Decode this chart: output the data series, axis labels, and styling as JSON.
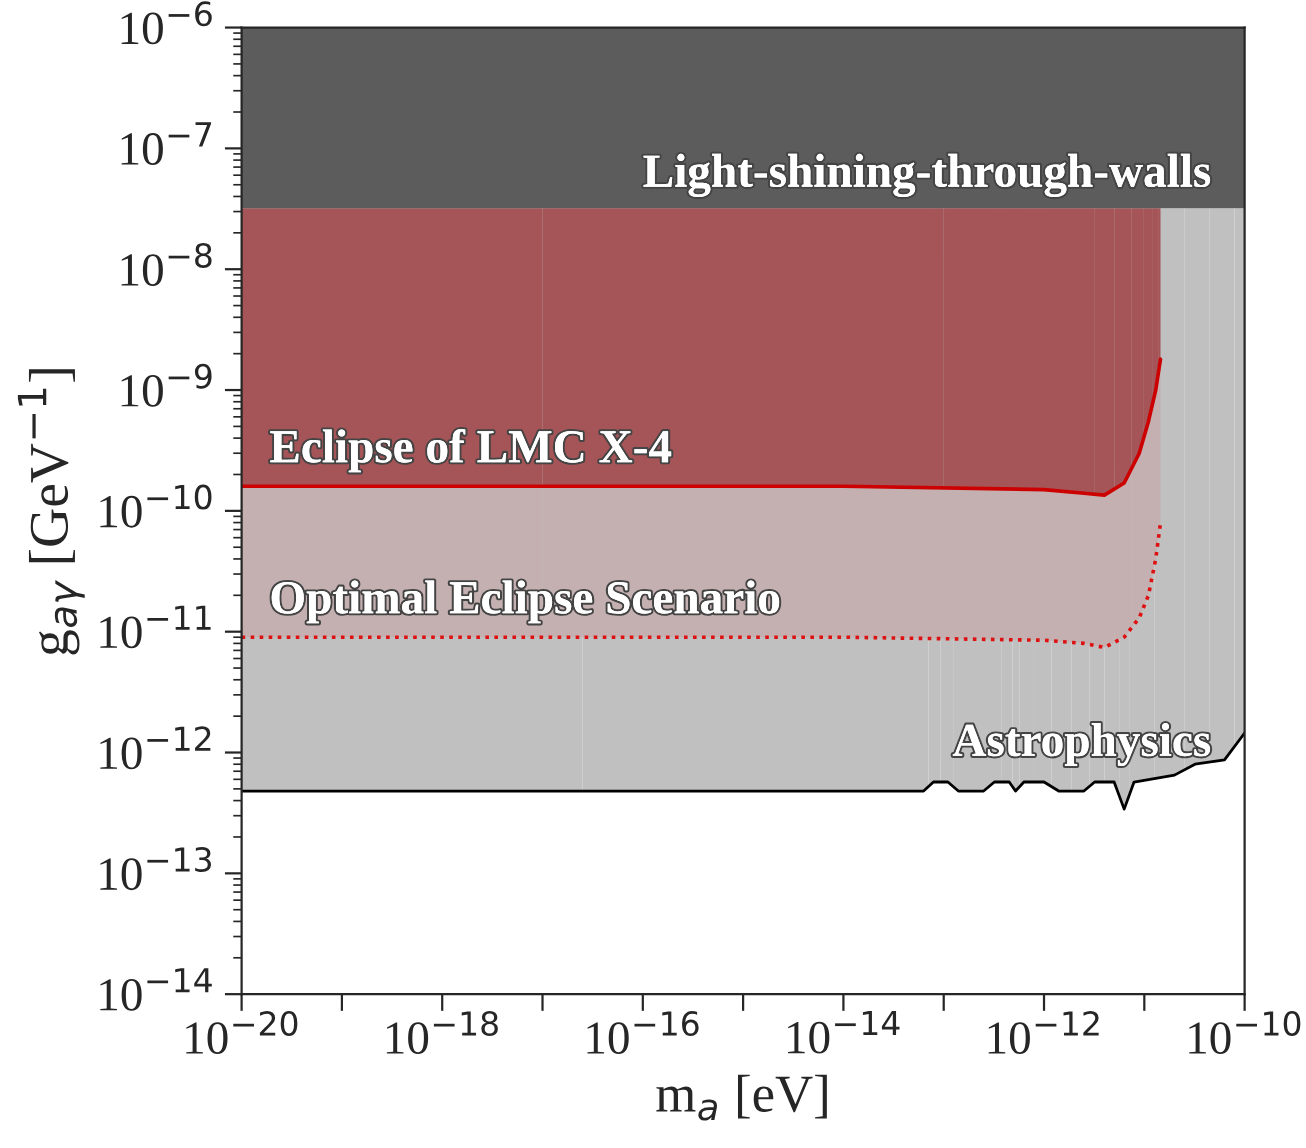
{
  "chart_data": {
    "type": "line",
    "xlabel": "m$_{a}$ [eV]",
    "ylabel": "g$_{aγ}$ [GeV$^{−1}$]",
    "log": "xy",
    "xlim": [
      1e-20,
      1e-10
    ],
    "ylim": [
      1e-14,
      1e-06
    ],
    "xticks": [
      {
        "value": 1e-20,
        "label": "10$^{−20}$"
      },
      {
        "value": 1e-19,
        "label": null
      },
      {
        "value": 1e-18,
        "label": "10$^{−18}$"
      },
      {
        "value": 1e-17,
        "label": null
      },
      {
        "value": 1e-16,
        "label": "10$^{−16}$"
      },
      {
        "value": 1e-15,
        "label": null
      },
      {
        "value": 1e-14,
        "label": "10$^{−14}$"
      },
      {
        "value": 1e-13,
        "label": null
      },
      {
        "value": 1e-12,
        "label": "10$^{−12}$"
      },
      {
        "value": 1e-11,
        "label": null
      },
      {
        "value": 1e-10,
        "label": "10$^{−10}$"
      }
    ],
    "yticks": [
      {
        "value": 1e-14,
        "label": "10$^{−14}$"
      },
      {
        "value": 1e-13,
        "label": "10$^{−13}$"
      },
      {
        "value": 1e-12,
        "label": "10$^{−12}$"
      },
      {
        "value": 1e-11,
        "label": "10$^{−11}$"
      },
      {
        "value": 1e-10,
        "label": "10$^{−10}$"
      },
      {
        "value": 1e-09,
        "label": "10$^{−9}$"
      },
      {
        "value": 1e-08,
        "label": "10$^{−8}$"
      },
      {
        "value": 1e-07,
        "label": "10$^{−7}$"
      },
      {
        "value": 1e-06,
        "label": "10$^{−6}$"
      }
    ],
    "grid": false,
    "legend": false,
    "marker": "none",
    "bands": [
      {
        "axis": "y",
        "from": 3.2e-08,
        "to": 1e-06,
        "label": "Light-shining-through-walls",
        "color": "#5c5c5c"
      }
    ],
    "series": [
      {
        "name": "Astrophysics",
        "color": "#000000",
        "colors": [
          "#c0c0c0",
          "#c0c0c0",
          "#c0c0c0",
          "#c0c0c0",
          "#c0c0c0",
          "#c0c0c0",
          "#c0c0c0",
          "#c0c0c0",
          "#c0c0c0",
          "#c0c0c0",
          "#c0c0c0",
          "#c0c0c0",
          "#c0c0c0",
          "#c0c0c0",
          "#c0c0c0",
          "#c0c0c0",
          "#c0c0c0",
          "#c0c0c0",
          "#c0c0c0",
          "#c0c0c0",
          "#c0c0c0"
        ],
        "line_style": "solid",
        "x": [
          1e-20,
          6.3e-14,
          7.9e-14,
          1.1e-13,
          1.4e-13,
          2.5e-13,
          3.2e-13,
          4.5e-13,
          5.2e-13,
          6.3e-13,
          1e-12,
          1.4e-12,
          2.5e-12,
          3.2e-12,
          5e-12,
          6.3e-12,
          7.9e-12,
          2e-11,
          3.2e-11,
          6.3e-11,
          1e-10
        ],
        "values": [
          4.8e-13,
          4.8e-13,
          5.7e-13,
          5.7e-13,
          4.8e-13,
          4.8e-13,
          5.7e-13,
          5.7e-13,
          4.8e-13,
          5.7e-13,
          5.7e-13,
          4.8e-13,
          4.8e-13,
          5.7e-13,
          5.7e-13,
          3.4e-13,
          5.7e-13,
          6.5e-13,
          8e-13,
          8.7e-13,
          1.45e-12
        ],
        "lower": [
          4.8e-13,
          4.8e-13,
          5.7e-13,
          5.7e-13,
          4.8e-13,
          4.8e-13,
          5.7e-13,
          5.7e-13,
          4.8e-13,
          5.7e-13,
          5.7e-13,
          4.8e-13,
          4.8e-13,
          5.7e-13,
          5.7e-13,
          3.4e-13,
          5.7e-13,
          6.5e-13,
          8e-13,
          8.7e-13,
          1.45e-12
        ],
        "upper": [
          3.2e-08,
          3.2e-08,
          3.2e-08,
          3.2e-08,
          3.2e-08,
          3.2e-08,
          3.2e-08,
          3.2e-08,
          3.2e-08,
          3.2e-08,
          3.2e-08,
          3.2e-08,
          3.2e-08,
          3.2e-08,
          3.2e-08,
          3.2e-08,
          3.2e-08,
          3.2e-08,
          3.2e-08,
          3.2e-08,
          3.2e-08
        ]
      },
      {
        "name": "Eclipse of LMC X-4",
        "color": "#cc0000",
        "colors": [
          "#a55457",
          "#a55457",
          "#a55457",
          "#a55457",
          "#a55457",
          "#a55457",
          "#a55457",
          "#a55457",
          "#a55457",
          "#a55457"
        ],
        "line_style": "solid",
        "x": [
          1e-20,
          1e-14,
          1e-12,
          2.5e-12,
          4e-12,
          6.3e-12,
          8.9e-12,
          1.1e-11,
          1.3e-11,
          1.45e-11
        ],
        "values": [
          1.6e-10,
          1.6e-10,
          1.5e-10,
          1.4e-10,
          1.35e-10,
          1.7e-10,
          3e-10,
          5.5e-10,
          1e-09,
          1.8e-09
        ],
        "lower": [
          1.6e-10,
          1.6e-10,
          1.5e-10,
          1.4e-10,
          1.35e-10,
          1.7e-10,
          3e-10,
          5.5e-10,
          1e-09,
          1.8e-09
        ],
        "upper": [
          3.2e-08,
          3.2e-08,
          3.2e-08,
          3.2e-08,
          3.2e-08,
          3.2e-08,
          3.2e-08,
          3.2e-08,
          3.2e-08,
          3.2e-08
        ]
      },
      {
        "name": "Optimal Eclipse Scenario",
        "color": "#dd1111",
        "colors": [
          "#c4b0b0",
          "#c4b0b0",
          "#c4b0b0",
          "#c4b0b0",
          "#c4b0b0",
          "#c4b0b0",
          "#c4b0b0",
          "#c4b0b0",
          "#c4b0b0",
          "#c4b0b0"
        ],
        "line_style": "dotted",
        "x": [
          1e-20,
          1e-14,
          1e-12,
          2.5e-12,
          4e-12,
          6.3e-12,
          8.9e-12,
          1.1e-11,
          1.3e-11,
          1.45e-11
        ],
        "values": [
          9e-12,
          9e-12,
          8.5e-12,
          8e-12,
          7.4e-12,
          9e-12,
          1.3e-11,
          2e-11,
          4e-11,
          8e-11
        ],
        "lower": [
          9e-12,
          9e-12,
          8.5e-12,
          8e-12,
          7.4e-12,
          9e-12,
          1.3e-11,
          2e-11,
          4e-11,
          8e-11
        ],
        "upper": [
          1.6e-10,
          1.6e-10,
          1.5e-10,
          1.4e-10,
          1.35e-10,
          1.7e-10,
          3e-10,
          5.5e-10,
          1e-09,
          1.8e-09
        ]
      }
    ]
  }
}
